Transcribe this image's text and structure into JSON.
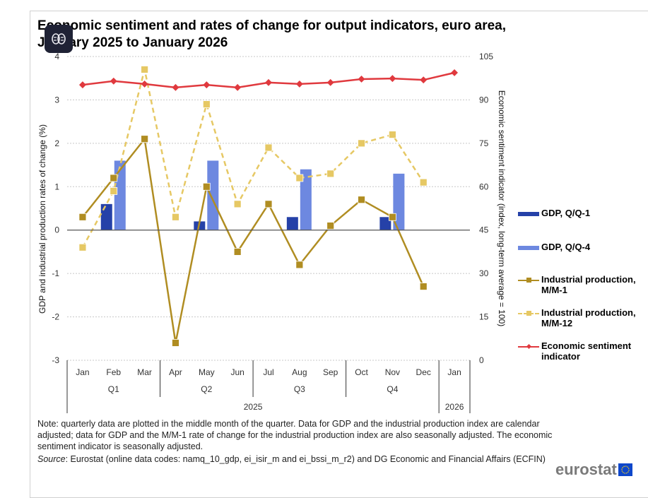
{
  "chart_data": {
    "type": "bar",
    "title": "Economic sentiment and rates of change for output indicators, euro area, January 2025 to January 2026",
    "categories": [
      "Jan",
      "Feb",
      "Mar",
      "Apr",
      "May",
      "Jun",
      "Jul",
      "Aug",
      "Sep",
      "Oct",
      "Nov",
      "Dec",
      "Jan"
    ],
    "quarters": [
      {
        "label": "Q1"
      },
      {
        "label": "Q2"
      },
      {
        "label": "Q3"
      },
      {
        "label": "Q4"
      }
    ],
    "years": [
      {
        "label": "2025"
      },
      {
        "label": "2026"
      }
    ],
    "ylabel": "GDP and industrial production rates of change (%)",
    "ylim": [
      -3,
      4
    ],
    "yticks": [
      "4",
      "3",
      "2",
      "1",
      "0",
      "-1",
      "-2",
      "-3"
    ],
    "y2label": "Economic sentiment indicator (index, long-term average = 100)",
    "y2lim": [
      0,
      105
    ],
    "y2ticks": [
      "105",
      "90",
      "75",
      "60",
      "45",
      "30",
      "15",
      "0"
    ],
    "grid": true,
    "legend_position": "right",
    "series": [
      {
        "name": "GDP, Q/Q-1",
        "type": "bar",
        "axis": "left",
        "color": "#2541a8",
        "values": [
          null,
          0.6,
          null,
          null,
          0.2,
          null,
          null,
          0.3,
          null,
          null,
          0.3,
          null,
          null
        ]
      },
      {
        "name": "GDP, Q/Q-4",
        "type": "bar",
        "axis": "left",
        "color": "#6d88e0",
        "values": [
          null,
          1.6,
          null,
          null,
          1.6,
          null,
          null,
          1.4,
          null,
          null,
          1.3,
          null,
          null
        ]
      },
      {
        "name": "Industrial production, M/M-1",
        "type": "line",
        "axis": "left",
        "color": "#b08d22",
        "values": [
          0.3,
          1.2,
          2.1,
          -2.6,
          1.0,
          -0.5,
          0.6,
          -0.8,
          0.1,
          0.7,
          0.3,
          -1.3,
          null
        ]
      },
      {
        "name": "Industrial production, M/M-12",
        "type": "line",
        "dashed": true,
        "axis": "left",
        "color": "#e6c864",
        "values": [
          -0.4,
          0.9,
          3.7,
          0.3,
          2.9,
          0.6,
          1.9,
          1.2,
          1.3,
          2.0,
          2.2,
          1.1,
          null
        ]
      },
      {
        "name": "Economic sentiment indicator",
        "type": "line",
        "axis": "right",
        "color": "#e0393e",
        "values": [
          95.2,
          96.5,
          95.5,
          94.3,
          95.2,
          94.3,
          96.0,
          95.5,
          96.0,
          97.2,
          97.4,
          96.9,
          99.4
        ]
      }
    ]
  },
  "note": "Note: quarterly data are plotted in the middle month of the quarter. Data for GDP and the industrial production index are calendar adjusted; data for GDP and the M/M-1 rate of change for the industrial production index are also seasonally adjusted. The economic sentiment indicator is seasonally adjusted.",
  "source_label": "Source",
  "source_text": ": Eurostat (online data codes: namq_10_gdp, ei_isir_m and ei_bssi_m_r2) and DG Economic and Financial Affairs (ECFIN)",
  "logo": "eurostat",
  "overlay_icon": "brain-icon"
}
